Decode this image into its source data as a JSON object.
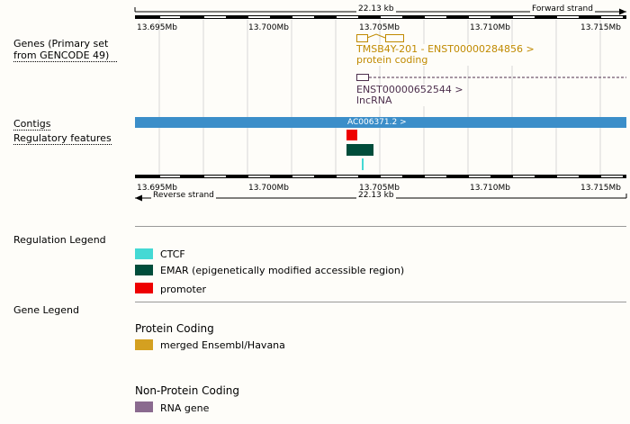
{
  "track_labels": {
    "genes": "Genes (Primary set from GENCODE 49)",
    "contigs": "Contigs",
    "regulatory": "Regulatory features"
  },
  "ruler_top": {
    "length": "22.13 kb",
    "strand": "Forward strand",
    "ticks": [
      "13.695Mb",
      "13.700Mb",
      "13.705Mb",
      "13.710Mb",
      "13.715Mb"
    ]
  },
  "ruler_bottom": {
    "length": "22.13 kb",
    "strand": "Reverse strand",
    "ticks": [
      "13.695Mb",
      "13.700Mb",
      "13.705Mb",
      "13.710Mb",
      "13.715Mb"
    ]
  },
  "genes": [
    {
      "name": "TMSB4Y-201 - ENST00000284856 >",
      "biotype": "protein coding",
      "color": "#c08a00"
    },
    {
      "name": "ENST00000652544 >",
      "biotype": "lncRNA",
      "color": "#4d2f4d"
    }
  ],
  "contig": {
    "label": "AC006371.2 >",
    "color": "#3b8ec9"
  },
  "regulation_legend": {
    "title": "Regulation Legend",
    "items": [
      {
        "label": "CTCF",
        "color": "#44d9d4"
      },
      {
        "label": "EMAR (epigenetically modified accessible region)",
        "color": "#004d3b"
      },
      {
        "label": "promoter",
        "color": "#ee0000"
      }
    ]
  },
  "gene_legend": {
    "title": "Gene Legend",
    "sections": [
      {
        "heading": "Protein Coding",
        "items": [
          {
            "label": "merged Ensembl/Havana",
            "color": "#d4a020"
          }
        ]
      },
      {
        "heading": "Non-Protein Coding",
        "items": [
          {
            "label": "RNA gene",
            "color": "#8a6a8f"
          }
        ]
      }
    ]
  }
}
